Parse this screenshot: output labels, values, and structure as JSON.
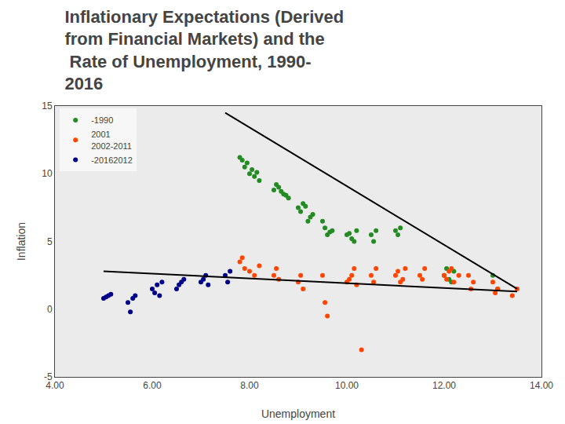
{
  "chart_data": {
    "type": "scatter",
    "title": "Inflationary Expectations (Derived\nfrom Financial Markets) and the\n Rate of Unemployment, 1990-\n2016",
    "x_label": "Unemployment",
    "y_label": "Inflation",
    "xlim": [
      4.0,
      14.0
    ],
    "ylim": [
      -5.0,
      15.0
    ],
    "xticks": [
      {
        "value": 4.0,
        "label": "4.00"
      },
      {
        "value": 6.0,
        "label": "6.00"
      },
      {
        "value": 8.0,
        "label": "8.00"
      },
      {
        "value": 10.0,
        "label": "10.00"
      },
      {
        "value": 12.0,
        "label": "12.00"
      },
      {
        "value": 14.0,
        "label": "14.00"
      }
    ],
    "yticks": [
      -5,
      0,
      5,
      10,
      15
    ],
    "grid": false,
    "legend": "upper left",
    "series": [
      {
        "name": "-1990",
        "type": "scatter",
        "color": "#228B22",
        "x": [
          7.8,
          7.85,
          7.9,
          7.95,
          8.0,
          8.05,
          8.1,
          8.15,
          8.2,
          8.5,
          8.55,
          8.6,
          8.65,
          8.7,
          8.75,
          8.8,
          9.0,
          9.05,
          9.1,
          9.15,
          9.2,
          9.25,
          9.3,
          9.5,
          9.55,
          9.6,
          9.65,
          9.7,
          10.0,
          10.05,
          10.1,
          10.15,
          10.2,
          10.5,
          10.55,
          10.6,
          11.0,
          11.05,
          11.1,
          12.0,
          12.05,
          12.1,
          12.15,
          12.2,
          13.0,
          13.1
        ],
        "values": [
          11.2,
          11.0,
          10.5,
          10.8,
          10.0,
          10.3,
          9.8,
          10.1,
          9.5,
          8.8,
          9.2,
          9.0,
          8.7,
          8.5,
          8.4,
          8.2,
          7.5,
          7.2,
          7.8,
          7.6,
          6.5,
          6.8,
          7.0,
          6.5,
          6.0,
          5.5,
          5.7,
          5.8,
          5.5,
          5.6,
          5.2,
          5.0,
          5.8,
          5.5,
          5.0,
          5.8,
          5.8,
          5.5,
          6.0,
          2.5,
          3.0,
          2.2,
          2.0,
          2.8,
          2.5,
          1.5
        ]
      },
      {
        "name": "2001\n2002-2011",
        "type": "scatter",
        "color": "#FF4500",
        "x": [
          7.8,
          7.85,
          7.9,
          8.0,
          8.1,
          8.2,
          8.5,
          8.55,
          8.6,
          9.0,
          9.05,
          9.1,
          9.5,
          9.55,
          9.6,
          10.0,
          10.05,
          10.1,
          10.15,
          10.2,
          10.3,
          10.5,
          10.55,
          10.6,
          11.0,
          11.05,
          11.1,
          11.15,
          11.2,
          11.5,
          11.55,
          11.6,
          12.0,
          12.05,
          12.1,
          12.15,
          12.2,
          12.3,
          12.5,
          12.55,
          12.6,
          13.0,
          13.05,
          13.1,
          13.4,
          13.5
        ],
        "values": [
          3.5,
          3.8,
          3.0,
          2.8,
          2.5,
          3.2,
          2.5,
          3.0,
          2.2,
          2.0,
          2.5,
          1.5,
          2.5,
          0.5,
          -0.5,
          2.0,
          2.2,
          2.5,
          3.0,
          1.8,
          -3.0,
          2.5,
          2.0,
          3.0,
          2.5,
          2.8,
          2.0,
          2.2,
          3.0,
          2.5,
          2.2,
          3.0,
          2.5,
          2.2,
          2.8,
          3.0,
          2.0,
          2.5,
          2.5,
          1.5,
          2.0,
          2.0,
          1.2,
          1.5,
          1.0,
          1.5
        ]
      },
      {
        "name": "-20162012",
        "type": "scatter",
        "color": "#00008B",
        "x": [
          5.0,
          5.05,
          5.1,
          5.15,
          5.5,
          5.55,
          5.6,
          5.65,
          6.0,
          6.05,
          6.1,
          6.15,
          6.2,
          6.5,
          6.55,
          6.6,
          6.65,
          7.0,
          7.05,
          7.1,
          7.15,
          7.5,
          7.55,
          7.6
        ],
        "values": [
          0.8,
          0.9,
          1.0,
          1.1,
          0.5,
          -0.2,
          0.8,
          1.0,
          1.5,
          1.2,
          1.8,
          1.0,
          2.0,
          1.5,
          1.8,
          2.0,
          2.2,
          2.0,
          2.2,
          2.5,
          1.8,
          2.5,
          2.0,
          2.8
        ]
      },
      {
        "type": "line",
        "color": "black",
        "x": [
          7.5,
          13.5
        ],
        "values": [
          14.5,
          1.5
        ]
      },
      {
        "type": "line",
        "color": "black",
        "x": [
          5.0,
          13.5
        ],
        "values": [
          2.8,
          1.3
        ]
      }
    ]
  }
}
